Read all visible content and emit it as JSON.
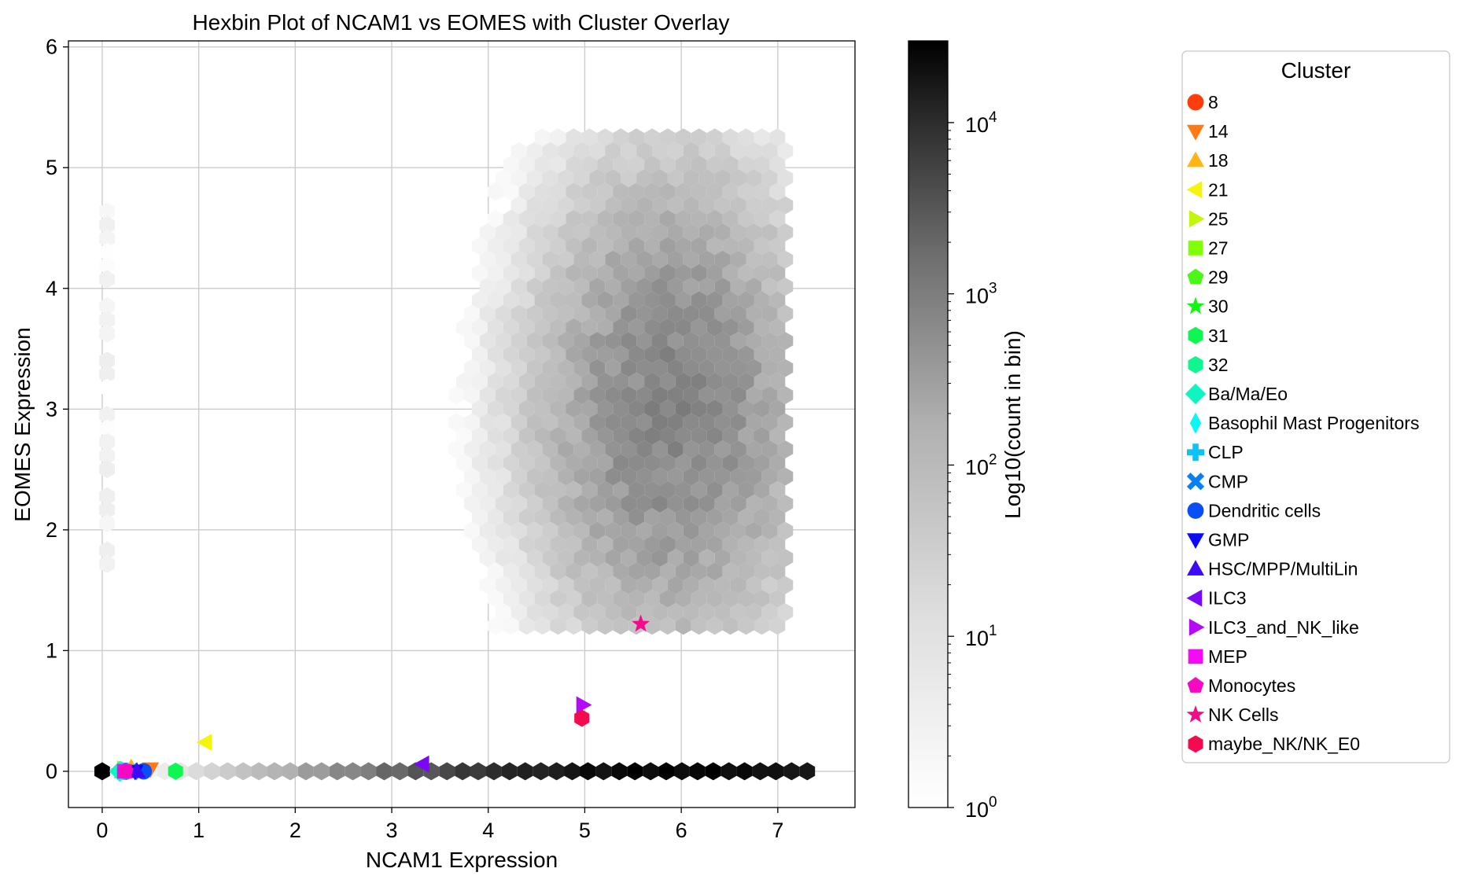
{
  "chart_data": {
    "type": "hexbin",
    "title": "Hexbin Plot of NCAM1 vs EOMES with Cluster Overlay",
    "xlabel": "NCAM1 Expression",
    "ylabel": "EOMES Expression",
    "xlim": [
      -0.35,
      7.8
    ],
    "ylim": [
      -0.3,
      6.05
    ],
    "xticks": [
      "0",
      "1",
      "2",
      "3",
      "4",
      "5",
      "6",
      "7"
    ],
    "yticks": [
      "0",
      "1",
      "2",
      "3",
      "4",
      "5",
      "6"
    ],
    "grid": true,
    "colorbar": {
      "label": "Log10(count in bin)",
      "scale": "log",
      "range": [
        1,
        30000
      ],
      "ticks": [
        {
          "base": "10",
          "exp": "0",
          "value": 1
        },
        {
          "base": "10",
          "exp": "1",
          "value": 10
        },
        {
          "base": "10",
          "exp": "2",
          "value": 100
        },
        {
          "base": "10",
          "exp": "3",
          "value": 1000
        },
        {
          "base": "10",
          "exp": "4",
          "value": 10000
        }
      ],
      "colormap": "Greys"
    },
    "hexbin_density": {
      "zero_row": {
        "y": 0,
        "x_min": 0,
        "x_max": 7.3,
        "peak_x": 5.9,
        "peak_count": 30000
      },
      "main_cloud": {
        "center_x": 5.9,
        "center_y": 3.0,
        "x_range": [
          3.1,
          7.1
        ],
        "y_range": [
          1.1,
          5.25
        ],
        "peak_count": 800
      },
      "vertical_strip": {
        "x": 0.05,
        "y_range": [
          1.65,
          4.75
        ],
        "count": 3
      }
    },
    "legend": {
      "title": "Cluster",
      "position": "outside-right"
    },
    "series": [
      {
        "name": "8",
        "marker": "circle",
        "color": "#ff3d0d",
        "x": 0.25,
        "y": 0.0
      },
      {
        "name": "14",
        "marker": "triangle-down",
        "color": "#ff7a12",
        "x": 0.5,
        "y": 0.02
      },
      {
        "name": "18",
        "marker": "triangle-up",
        "color": "#ffb514",
        "x": 0.3,
        "y": 0.03
      },
      {
        "name": "21",
        "marker": "triangle-left",
        "color": "#f5f50a",
        "x": 1.07,
        "y": 0.24
      },
      {
        "name": "25",
        "marker": "triangle-right",
        "color": "#c2f70a",
        "x": 0.22,
        "y": 0.02
      },
      {
        "name": "27",
        "marker": "square",
        "color": "#80ff08",
        "x": 0.28,
        "y": 0.0
      },
      {
        "name": "29",
        "marker": "pentagon",
        "color": "#4af716",
        "x": 0.2,
        "y": 0.01
      },
      {
        "name": "30",
        "marker": "star",
        "color": "#14f514",
        "x": 0.18,
        "y": 0.0
      },
      {
        "name": "31",
        "marker": "hexagon",
        "color": "#0ff552",
        "x": 0.76,
        "y": 0.0
      },
      {
        "name": "32",
        "marker": "hexagon",
        "color": "#0ff58f",
        "x": 0.2,
        "y": 0.0
      },
      {
        "name": "Ba/Ma/Eo",
        "marker": "diamond",
        "color": "#0ff5c2",
        "x": 0.18,
        "y": 0.0
      },
      {
        "name": "Basophil Mast Progenitors",
        "marker": "thin-diamond",
        "color": "#0ff5f5",
        "x": 0.19,
        "y": 0.0
      },
      {
        "name": "CLP",
        "marker": "plus",
        "color": "#0fc2f5",
        "x": 0.24,
        "y": 0.0
      },
      {
        "name": "CMP",
        "marker": "x",
        "color": "#0a7ff5",
        "x": 0.3,
        "y": 0.0
      },
      {
        "name": "Dendritic cells",
        "marker": "circle",
        "color": "#0a4ff5",
        "x": 0.43,
        "y": 0.0
      },
      {
        "name": "GMP",
        "marker": "triangle-down",
        "color": "#0a0af5",
        "x": 0.34,
        "y": 0.0
      },
      {
        "name": "HSC/MPP/MultiLin",
        "marker": "triangle-up",
        "color": "#3d0af5",
        "x": 0.36,
        "y": 0.0
      },
      {
        "name": "ILC3",
        "marker": "triangle-left",
        "color": "#7a0af5",
        "x": 3.32,
        "y": 0.06
      },
      {
        "name": "ILC3_and_NK_like",
        "marker": "triangle-right",
        "color": "#b50af5",
        "x": 4.98,
        "y": 0.55
      },
      {
        "name": "MEP",
        "marker": "square",
        "color": "#f50af5",
        "x": 0.23,
        "y": 0.0
      },
      {
        "name": "Monocytes",
        "marker": "pentagon",
        "color": "#f50ac2",
        "x": 0.24,
        "y": 0.0
      },
      {
        "name": "NK Cells",
        "marker": "star",
        "color": "#f50a8a",
        "x": 5.58,
        "y": 1.22
      },
      {
        "name": "maybe_NK/NK_E0",
        "marker": "hexagon",
        "color": "#f50a4f",
        "x": 4.97,
        "y": 0.44
      }
    ]
  }
}
